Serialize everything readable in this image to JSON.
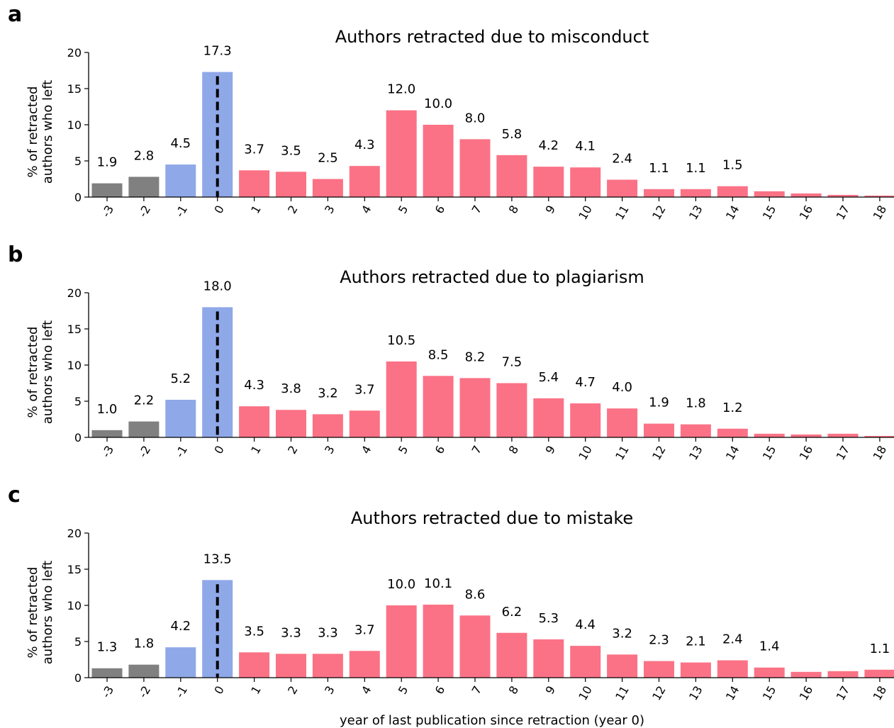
{
  "figure": {
    "xlabel": "year of last publication since retraction (year 0)",
    "ylabel_line1": "% of retracted",
    "ylabel_line2": "authors who left",
    "colors": {
      "before": "#808080",
      "retraction": "#8fa8e8",
      "after": "#fb7286",
      "marker": "#000000"
    }
  },
  "chart_data": [
    {
      "type": "bar",
      "panel": "a",
      "title": "Authors retracted due to misconduct",
      "xlabel": "",
      "ylabel": "% of retracted authors who left",
      "ylim": [
        0,
        20
      ],
      "yticks": [
        0,
        5,
        10,
        15,
        20
      ],
      "categories": [
        "-3",
        "-2",
        "-1",
        "0",
        "1",
        "2",
        "3",
        "4",
        "5",
        "6",
        "7",
        "8",
        "9",
        "10",
        "11",
        "12",
        "13",
        "14",
        "15",
        "16",
        "17",
        "18"
      ],
      "values": [
        1.9,
        2.8,
        4.5,
        17.3,
        3.7,
        3.5,
        2.5,
        4.3,
        12.0,
        10.0,
        8.0,
        5.8,
        4.2,
        4.1,
        2.4,
        1.1,
        1.1,
        1.5,
        0.8,
        0.5,
        0.3,
        0.2
      ],
      "labels": [
        "1.9",
        "2.8",
        "4.5",
        "17.3",
        "3.7",
        "3.5",
        "2.5",
        "4.3",
        "12.0",
        "10.0",
        "8.0",
        "5.8",
        "4.2",
        "4.1",
        "2.4",
        "1.1",
        "1.1",
        "1.5",
        "",
        "",
        "",
        ""
      ]
    },
    {
      "type": "bar",
      "panel": "b",
      "title": "Authors retracted due to plagiarism",
      "xlabel": "",
      "ylabel": "% of retracted authors who left",
      "ylim": [
        0,
        20
      ],
      "yticks": [
        0,
        5,
        10,
        15,
        20
      ],
      "categories": [
        "-3",
        "-2",
        "-1",
        "0",
        "1",
        "2",
        "3",
        "4",
        "5",
        "6",
        "7",
        "8",
        "9",
        "10",
        "11",
        "12",
        "13",
        "14",
        "15",
        "16",
        "17",
        "18"
      ],
      "values": [
        1.0,
        2.2,
        5.2,
        18.0,
        4.3,
        3.8,
        3.2,
        3.7,
        10.5,
        8.5,
        8.2,
        7.5,
        5.4,
        4.7,
        4.0,
        1.9,
        1.8,
        1.2,
        0.5,
        0.4,
        0.5,
        0.2
      ],
      "labels": [
        "1.0",
        "2.2",
        "5.2",
        "18.0",
        "4.3",
        "3.8",
        "3.2",
        "3.7",
        "10.5",
        "8.5",
        "8.2",
        "7.5",
        "5.4",
        "4.7",
        "4.0",
        "1.9",
        "1.8",
        "1.2",
        "",
        "",
        "",
        ""
      ]
    },
    {
      "type": "bar",
      "panel": "c",
      "title": "Authors retracted due to mistake",
      "xlabel": "year of last publication since retraction (year 0)",
      "ylabel": "% of retracted authors who left",
      "ylim": [
        0,
        20
      ],
      "yticks": [
        0,
        5,
        10,
        15,
        20
      ],
      "categories": [
        "-3",
        "-2",
        "-1",
        "0",
        "1",
        "2",
        "3",
        "4",
        "5",
        "6",
        "7",
        "8",
        "9",
        "10",
        "11",
        "12",
        "13",
        "14",
        "15",
        "16",
        "17",
        "18"
      ],
      "values": [
        1.3,
        1.8,
        4.2,
        13.5,
        3.5,
        3.3,
        3.3,
        3.7,
        10.0,
        10.1,
        8.6,
        6.2,
        5.3,
        4.4,
        3.2,
        2.3,
        2.1,
        2.4,
        1.4,
        0.8,
        0.9,
        1.1
      ],
      "labels": [
        "1.3",
        "1.8",
        "4.2",
        "13.5",
        "3.5",
        "3.3",
        "3.3",
        "3.7",
        "10.0",
        "10.1",
        "8.6",
        "6.2",
        "5.3",
        "4.4",
        "3.2",
        "2.3",
        "2.1",
        "2.4",
        "1.4",
        "",
        "",
        "1.1"
      ]
    }
  ]
}
